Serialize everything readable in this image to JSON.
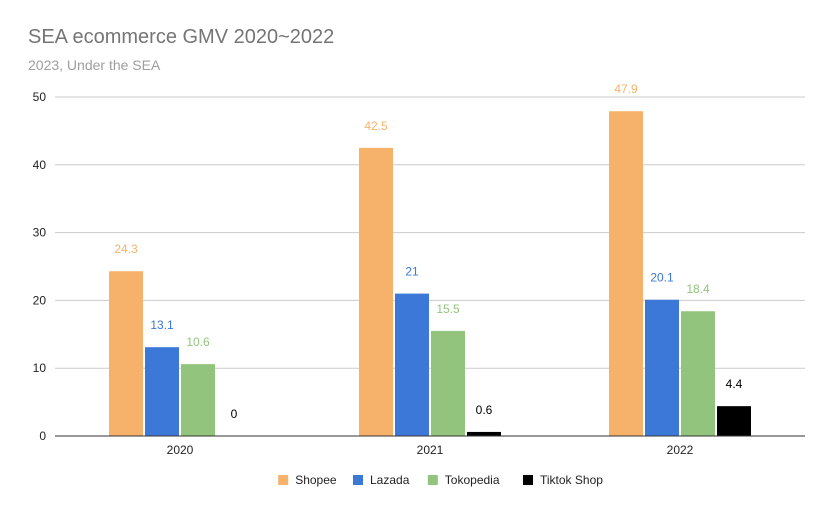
{
  "chart_data": {
    "type": "bar",
    "title": "SEA ecommerce GMV 2020~2022",
    "subtitle": "2023, Under the SEA",
    "xlabel": "",
    "ylabel": "",
    "categories": [
      "2020",
      "2021",
      "2022"
    ],
    "ylim": [
      0,
      50
    ],
    "yticks": [
      0,
      10,
      20,
      30,
      40,
      50
    ],
    "grid": true,
    "legend_position": "bottom",
    "series": [
      {
        "name": "Shopee",
        "color": "#f6b26b",
        "values": [
          24.3,
          42.5,
          47.9
        ],
        "labels": [
          "24.3",
          "42.5",
          "47.9"
        ]
      },
      {
        "name": "Lazada",
        "color": "#3c78d8",
        "values": [
          13.1,
          21,
          20.1
        ],
        "labels": [
          "13.1",
          "21",
          "20.1"
        ]
      },
      {
        "name": "Tokopedia",
        "color": "#93c47d",
        "values": [
          10.6,
          15.5,
          18.4
        ],
        "labels": [
          "10.6",
          "15.5",
          "18.4"
        ]
      },
      {
        "name": "Tiktok Shop",
        "color": "#000000",
        "values": [
          0,
          0.6,
          4.4
        ],
        "labels": [
          "0",
          "0.6",
          "4.4"
        ]
      }
    ]
  }
}
